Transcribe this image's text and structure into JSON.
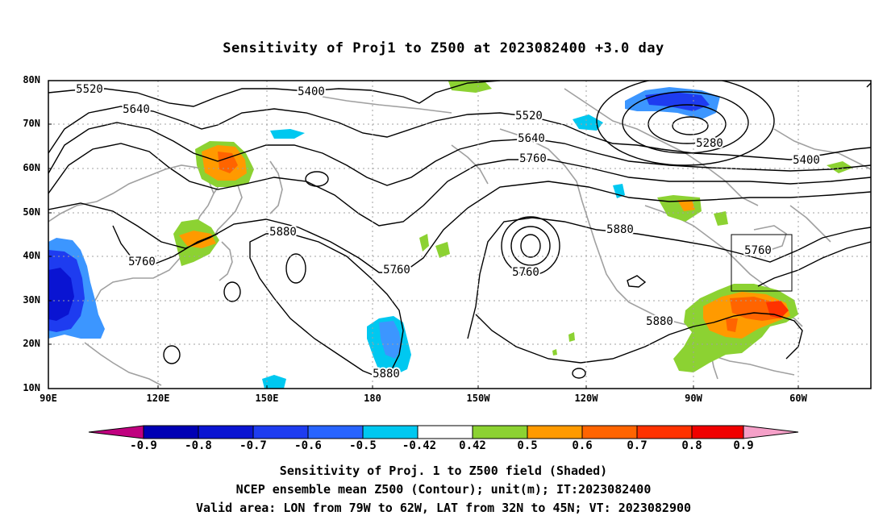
{
  "title": "Sensitivity of Proj1 to Z500 at 2023082400 +3.0 day",
  "lat_labels": [
    "80N",
    "70N",
    "60N",
    "50N",
    "40N",
    "30N",
    "20N",
    "10N"
  ],
  "lon_labels": [
    "90E",
    "120E",
    "150E",
    "180",
    "150W",
    "120W",
    "90W",
    "60W"
  ],
  "contour_labels": [
    "5520",
    "5400",
    "5640",
    "5520",
    "5640",
    "5760",
    "5280",
    "5400",
    "5880",
    "5880",
    "5760",
    "5760",
    "5760",
    "5760",
    "5880",
    "5880"
  ],
  "colorbar": {
    "labels": [
      "-0.9",
      "-0.8",
      "-0.7",
      "-0.6",
      "-0.5",
      "-0.42",
      "0.42",
      "0.5",
      "0.6",
      "0.7",
      "0.8",
      "0.9"
    ],
    "colors": [
      "#c0007f",
      "#0000b4",
      "#0a14d2",
      "#1e3cf0",
      "#2864ff",
      "#3c96ff",
      "#00c8f0",
      "#ffffff",
      "#8cd232",
      "#ff9a00",
      "#ff6400",
      "#ff3200",
      "#f00000",
      "#f5a0c8"
    ]
  },
  "captions": [
    "Sensitivity of Proj. 1 to Z500 field (Shaded)",
    "NCEP ensemble mean Z500 (Contour); unit(m); IT:2023082400",
    "Valid area: LON from 79W to 62W, LAT from 32N to 45N; VT: 2023082900"
  ]
}
